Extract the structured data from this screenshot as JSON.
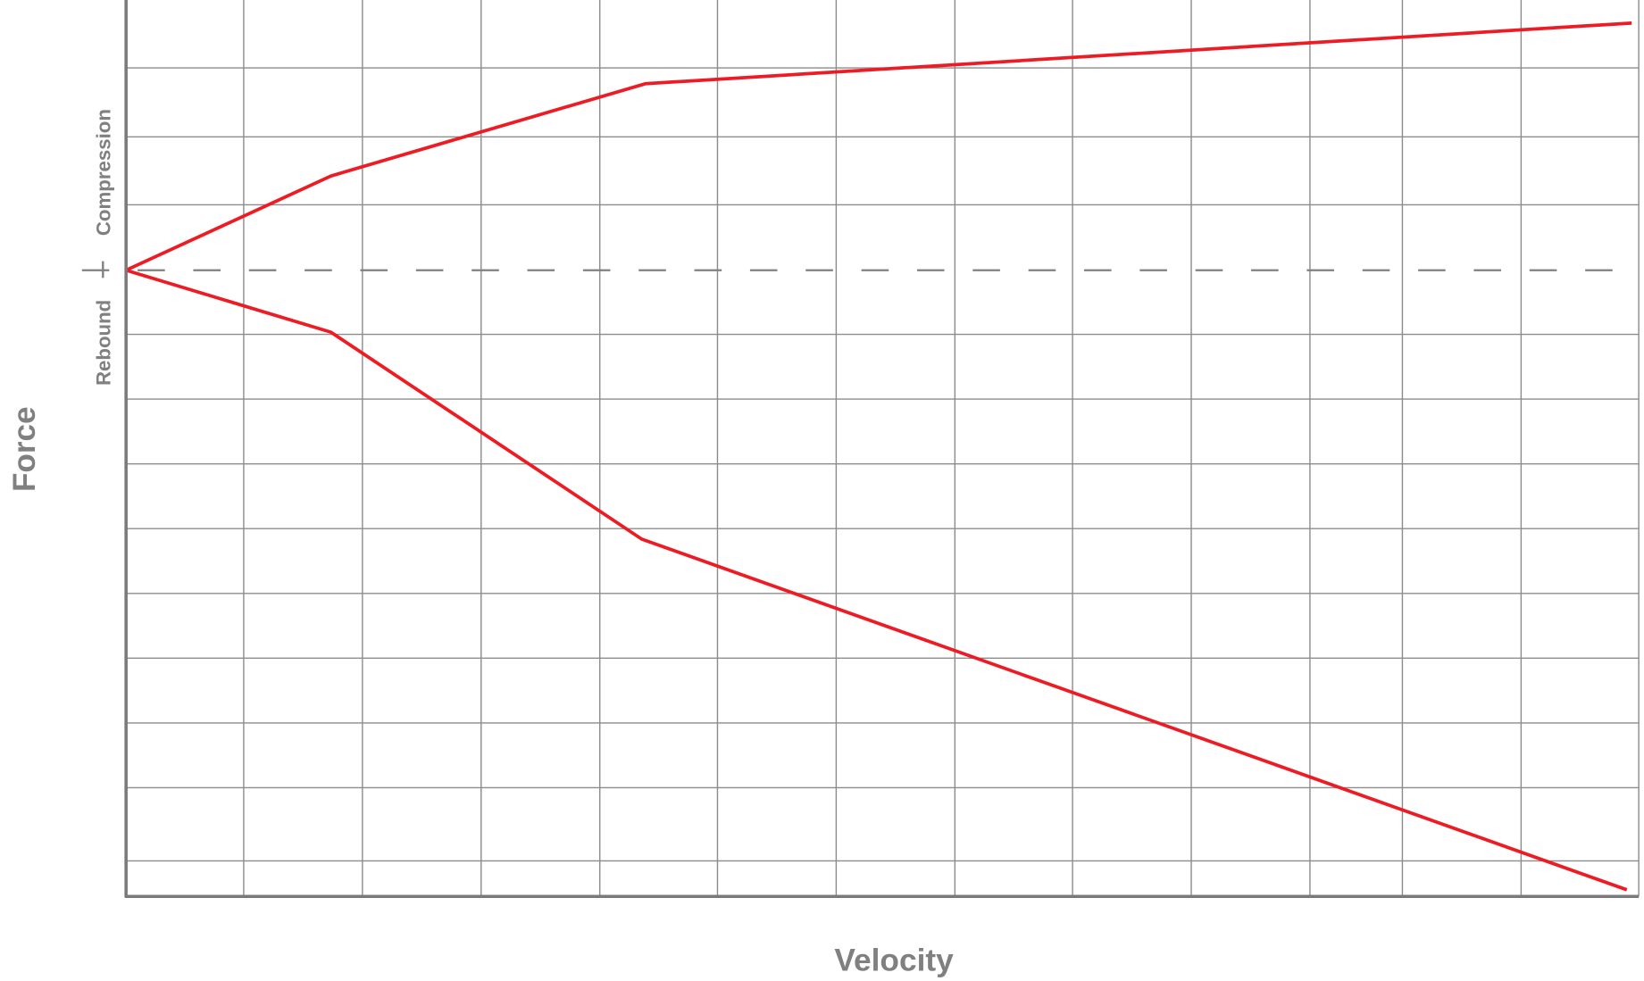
{
  "chart_data": {
    "type": "line",
    "title": "",
    "xlabel": "Velocity",
    "ylabel": "Force",
    "region_labels": {
      "upper": "Compression",
      "lower": "Rebound"
    },
    "xlim": [
      0,
      12.7
    ],
    "ylim": [
      -9.5,
      4.1
    ],
    "grid": true,
    "legend": "none",
    "zero_line": {
      "y": 0,
      "style": "dashed"
    },
    "colors": {
      "series": "#ed1c24",
      "grid": "#8c8c8c",
      "axis": "#7a7a7a",
      "zero_line": "#808080"
    },
    "series": [
      {
        "x": [
          0,
          1.72,
          4.36,
          12.64
        ],
        "y": [
          0,
          1.43,
          2.83,
          3.75
        ]
      },
      {
        "x": [
          0,
          1.72,
          4.33,
          12.6
        ],
        "y": [
          0,
          -0.94,
          -4.08,
          -9.4
        ]
      }
    ]
  }
}
